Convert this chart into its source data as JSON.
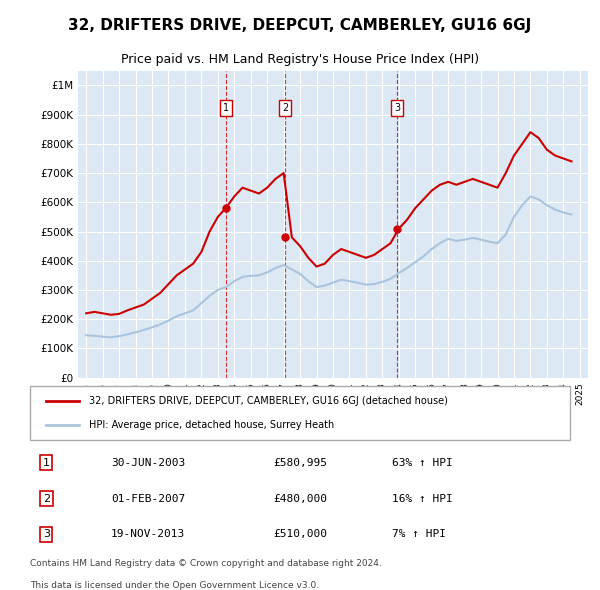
{
  "title": "32, DRIFTERS DRIVE, DEEPCUT, CAMBERLEY, GU16 6GJ",
  "subtitle": "Price paid vs. HM Land Registry's House Price Index (HPI)",
  "legend_label_red": "32, DRIFTERS DRIVE, DEEPCUT, CAMBERLEY, GU16 6GJ (detached house)",
  "legend_label_blue": "HPI: Average price, detached house, Surrey Heath",
  "footnote1": "Contains HM Land Registry data © Crown copyright and database right 2024.",
  "footnote2": "This data is licensed under the Open Government Licence v3.0.",
  "transactions": [
    {
      "label": "1",
      "date": "30-JUN-2003",
      "price": "£580,995",
      "change": "63% ↑ HPI"
    },
    {
      "label": "2",
      "date": "01-FEB-2007",
      "price": "£480,000",
      "change": "16% ↑ HPI"
    },
    {
      "label": "3",
      "date": "19-NOV-2013",
      "price": "£510,000",
      "change": "7% ↑ HPI"
    }
  ],
  "vline_years": [
    2003.5,
    2007.08,
    2013.89
  ],
  "vline_labels": [
    "1",
    "2",
    "3"
  ],
  "ylim": [
    0,
    1050000
  ],
  "yticks": [
    0,
    100000,
    200000,
    300000,
    400000,
    500000,
    600000,
    700000,
    800000,
    900000,
    1000000
  ],
  "ytick_labels": [
    "£0",
    "£100K",
    "£200K",
    "£300K",
    "£400K",
    "£500K",
    "£600K",
    "£700K",
    "£800K",
    "£900K",
    "£1M"
  ],
  "xlim_start": 1994.5,
  "xlim_end": 2025.5,
  "red_color": "#cc0000",
  "blue_color": "#aac4dd",
  "background_color": "#dce9f5",
  "grid_color": "#ffffff",
  "red_data": {
    "years": [
      1995.0,
      1995.5,
      1996.0,
      1996.5,
      1997.0,
      1997.5,
      1998.0,
      1998.5,
      1999.0,
      1999.5,
      2000.0,
      2000.5,
      2001.0,
      2001.5,
      2002.0,
      2002.5,
      2003.0,
      2003.5,
      2004.0,
      2004.5,
      2005.0,
      2005.5,
      2006.0,
      2006.5,
      2007.0,
      2007.5,
      2008.0,
      2008.5,
      2009.0,
      2009.5,
      2010.0,
      2010.5,
      2011.0,
      2011.5,
      2012.0,
      2012.5,
      2013.0,
      2013.5,
      2014.0,
      2014.5,
      2015.0,
      2015.5,
      2016.0,
      2016.5,
      2017.0,
      2017.5,
      2018.0,
      2018.5,
      2019.0,
      2019.5,
      2020.0,
      2020.5,
      2021.0,
      2021.5,
      2022.0,
      2022.5,
      2023.0,
      2023.5,
      2024.0,
      2024.5
    ],
    "values": [
      220000,
      225000,
      220000,
      215000,
      218000,
      230000,
      240000,
      250000,
      270000,
      290000,
      320000,
      350000,
      370000,
      390000,
      430000,
      500000,
      550000,
      580995,
      620000,
      650000,
      640000,
      630000,
      650000,
      680000,
      700000,
      480000,
      450000,
      410000,
      380000,
      390000,
      420000,
      440000,
      430000,
      420000,
      410000,
      420000,
      440000,
      460000,
      510000,
      540000,
      580000,
      610000,
      640000,
      660000,
      670000,
      660000,
      670000,
      680000,
      670000,
      660000,
      650000,
      700000,
      760000,
      800000,
      840000,
      820000,
      780000,
      760000,
      750000,
      740000
    ]
  },
  "blue_data": {
    "years": [
      1995.0,
      1995.5,
      1996.0,
      1996.5,
      1997.0,
      1997.5,
      1998.0,
      1998.5,
      1999.0,
      1999.5,
      2000.0,
      2000.5,
      2001.0,
      2001.5,
      2002.0,
      2002.5,
      2003.0,
      2003.5,
      2004.0,
      2004.5,
      2005.0,
      2005.5,
      2006.0,
      2006.5,
      2007.0,
      2007.5,
      2008.0,
      2008.5,
      2009.0,
      2009.5,
      2010.0,
      2010.5,
      2011.0,
      2011.5,
      2012.0,
      2012.5,
      2013.0,
      2013.5,
      2014.0,
      2014.5,
      2015.0,
      2015.5,
      2016.0,
      2016.5,
      2017.0,
      2017.5,
      2018.0,
      2018.5,
      2019.0,
      2019.5,
      2020.0,
      2020.5,
      2021.0,
      2021.5,
      2022.0,
      2022.5,
      2023.0,
      2023.5,
      2024.0,
      2024.5
    ],
    "values": [
      145000,
      143000,
      140000,
      138000,
      142000,
      148000,
      155000,
      163000,
      172000,
      182000,
      195000,
      210000,
      220000,
      230000,
      255000,
      280000,
      300000,
      310000,
      330000,
      345000,
      348000,
      350000,
      360000,
      375000,
      385000,
      370000,
      355000,
      330000,
      310000,
      315000,
      325000,
      335000,
      330000,
      325000,
      318000,
      320000,
      328000,
      338000,
      358000,
      375000,
      395000,
      415000,
      440000,
      460000,
      475000,
      468000,
      472000,
      478000,
      472000,
      465000,
      460000,
      490000,
      550000,
      590000,
      620000,
      610000,
      590000,
      575000,
      565000,
      558000
    ]
  },
  "sale_points": [
    {
      "year": 2003.5,
      "price": 580995,
      "color": "#cc0000"
    },
    {
      "year": 2007.08,
      "price": 480000,
      "color": "#cc0000"
    },
    {
      "year": 2013.89,
      "price": 510000,
      "color": "#cc0000"
    }
  ]
}
